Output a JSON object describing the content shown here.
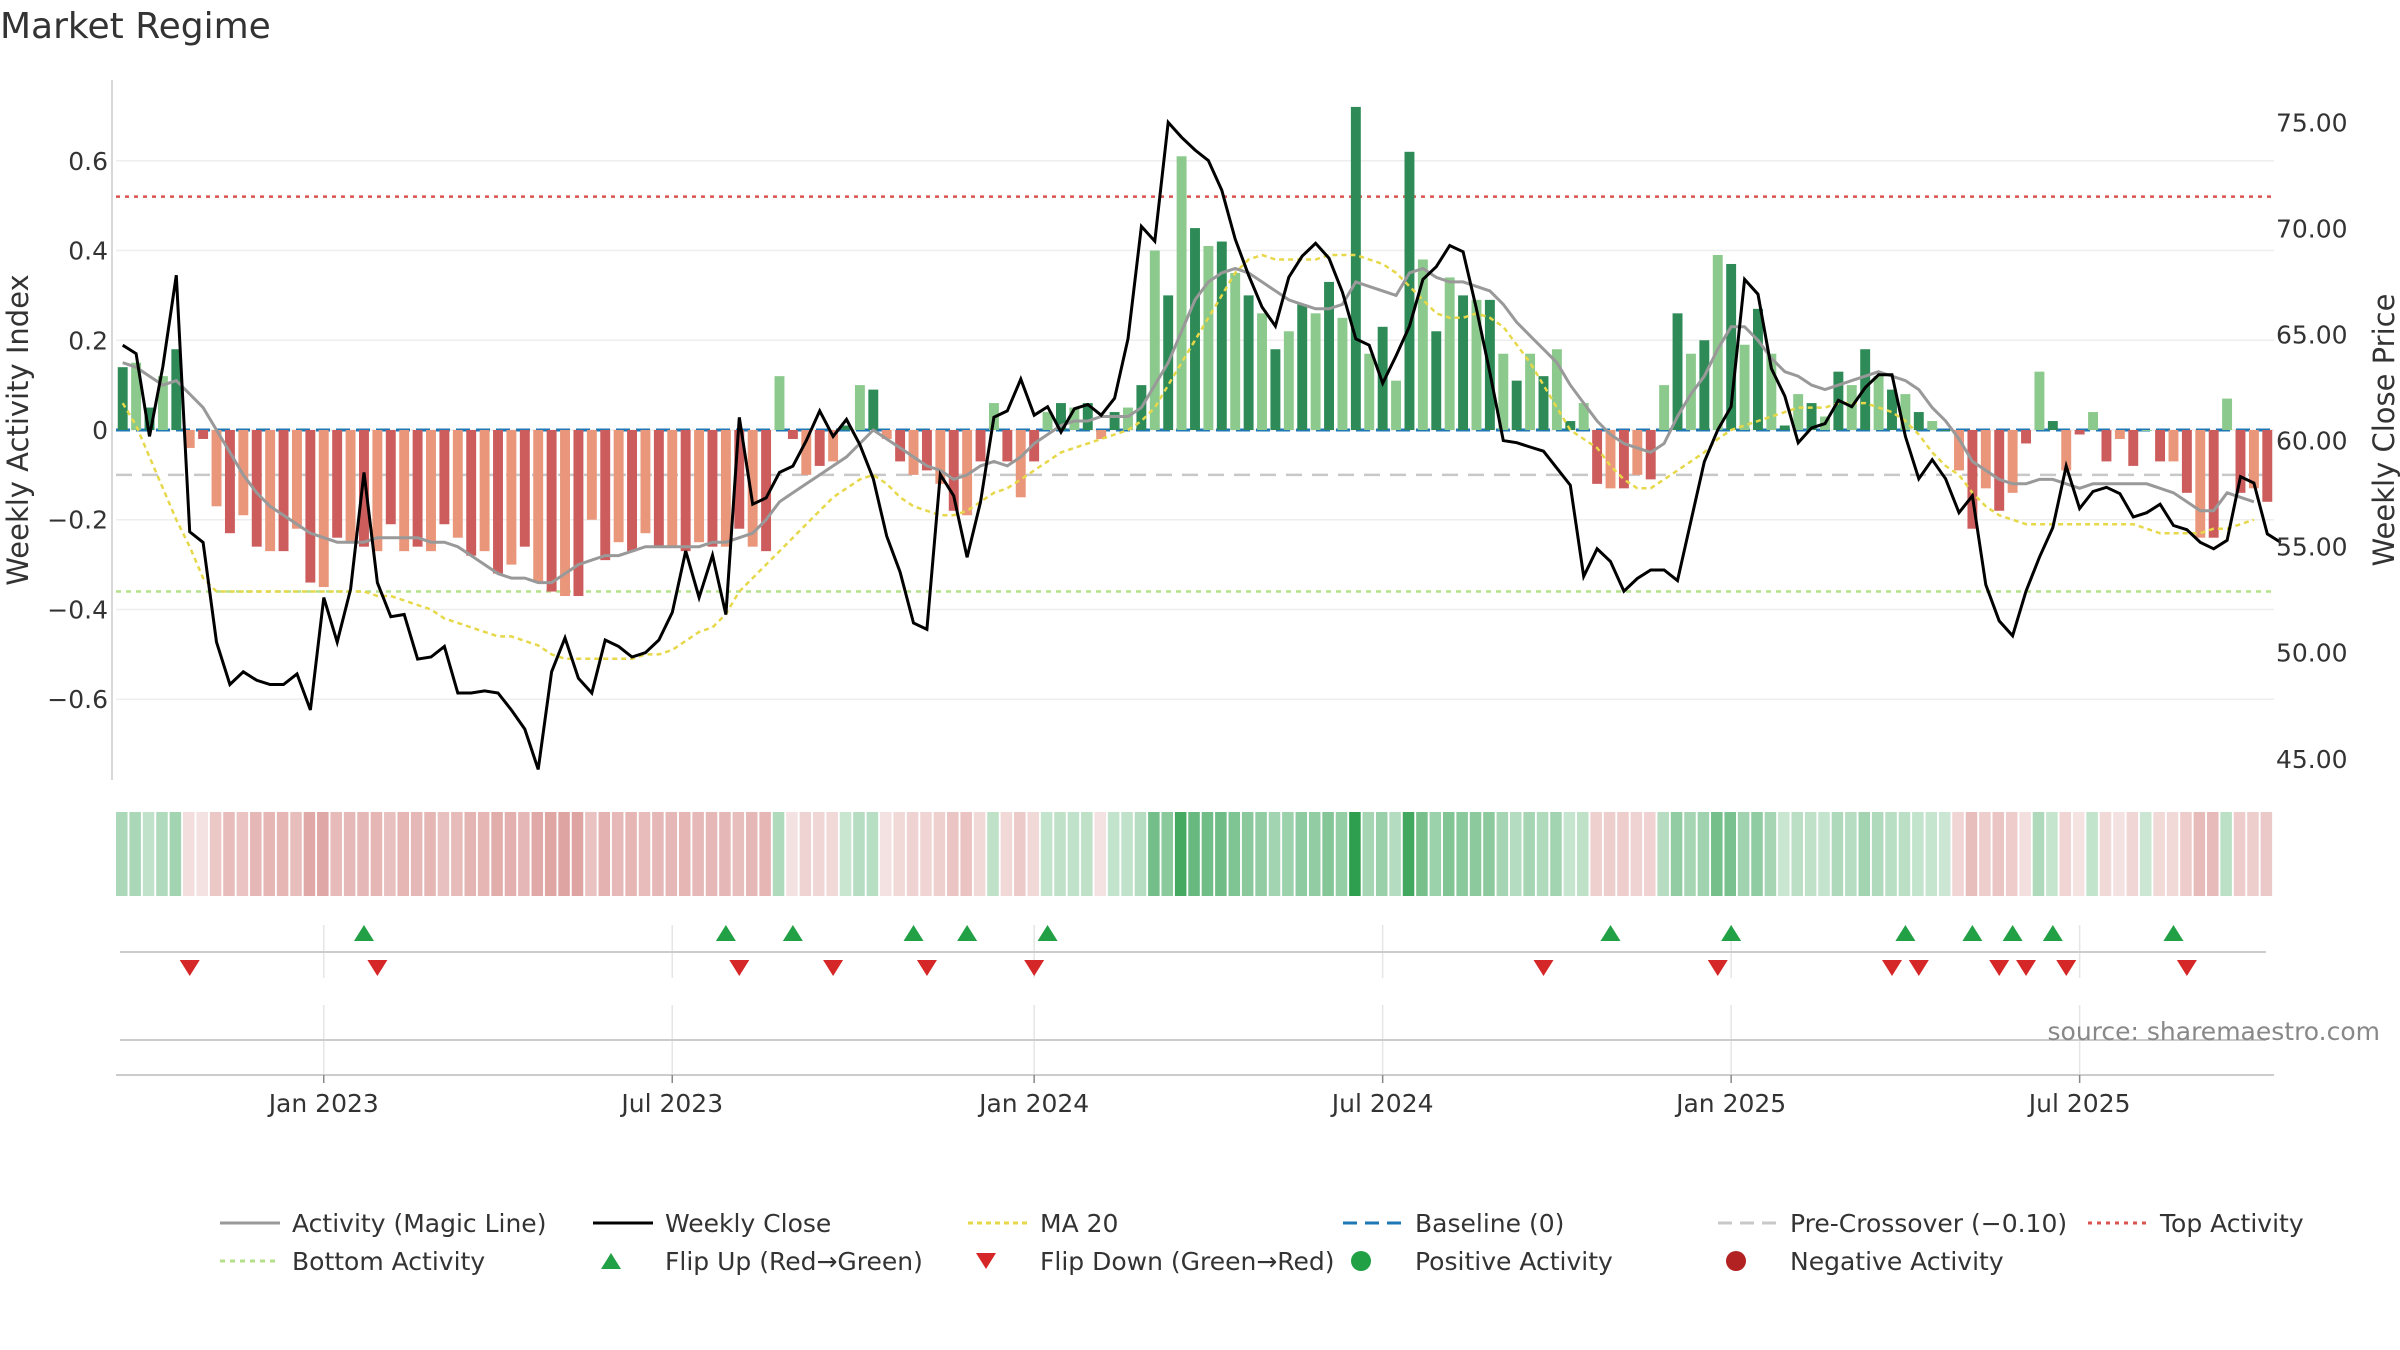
{
  "title": "Market Regime",
  "source": "source: sharemaestro.com",
  "colors": {
    "pos_dark": "#2e8b57",
    "pos_light": "#8cc98c",
    "neg_dark": "#cd5c5c",
    "neg_light": "#e9967a",
    "magic": "#999999",
    "close": "#000000",
    "ma20": "#e6d84a",
    "baseline": "#1f77b4",
    "pre": "#c8c8c8",
    "top": "#d9534f",
    "bottom": "#b5e08a",
    "flip_up": "#22a045",
    "flip_down": "#d62728",
    "pos_dot": "#22a045",
    "neg_dot": "#b22222"
  },
  "chart_data": {
    "type": "bar",
    "title": "Market Regime",
    "ylabel_left": "Weekly Activity Index",
    "ylabel_right": "Weekly Close Price",
    "ylim_left": [
      -0.78,
      0.78
    ],
    "ylim_right": [
      44,
      77
    ],
    "left_ticks": [
      {
        "v": 0.6,
        "label": "0.6"
      },
      {
        "v": 0.4,
        "label": "0.4"
      },
      {
        "v": 0.2,
        "label": "0.2"
      },
      {
        "v": 0,
        "label": "0"
      },
      {
        "v": -0.2,
        "label": "−0.2"
      },
      {
        "v": -0.4,
        "label": "−0.4"
      },
      {
        "v": -0.6,
        "label": "−0.6"
      }
    ],
    "right_ticks": [
      {
        "v": 75,
        "label": "75.00"
      },
      {
        "v": 70,
        "label": "70.00"
      },
      {
        "v": 65,
        "label": "65.00"
      },
      {
        "v": 60,
        "label": "60.00"
      },
      {
        "v": 55,
        "label": "55.00"
      },
      {
        "v": 50,
        "label": "50.00"
      },
      {
        "v": 45,
        "label": "45.00"
      }
    ],
    "x_ticks": [
      {
        "week": 15,
        "label": "Jan 2023"
      },
      {
        "week": 41,
        "label": "Jul 2023"
      },
      {
        "week": 68,
        "label": "Jan 2024"
      },
      {
        "week": 94,
        "label": "Jul 2024"
      },
      {
        "week": 120,
        "label": "Jan 2025"
      },
      {
        "week": 146,
        "label": "Jul 2025"
      }
    ],
    "top_activity": 0.52,
    "bottom_activity": -0.36,
    "pre_crossover": -0.1,
    "baseline": 0,
    "activity": [
      0.14,
      0.15,
      0.05,
      0.12,
      0.18,
      -0.04,
      -0.02,
      -0.17,
      -0.23,
      -0.19,
      -0.26,
      -0.27,
      -0.27,
      -0.22,
      -0.34,
      -0.35,
      -0.24,
      -0.25,
      -0.26,
      -0.27,
      -0.21,
      -0.27,
      -0.26,
      -0.27,
      -0.21,
      -0.24,
      -0.28,
      -0.27,
      -0.32,
      -0.3,
      -0.26,
      -0.34,
      -0.36,
      -0.37,
      -0.37,
      -0.2,
      -0.29,
      -0.25,
      -0.27,
      -0.23,
      -0.26,
      -0.26,
      -0.27,
      -0.25,
      -0.26,
      -0.26,
      -0.22,
      -0.26,
      -0.27,
      0.12,
      -0.02,
      -0.1,
      -0.08,
      -0.07,
      0.01,
      0.1,
      0.09,
      -0.02,
      -0.07,
      -0.1,
      -0.09,
      -0.12,
      -0.18,
      -0.19,
      -0.07,
      0.06,
      -0.07,
      -0.15,
      -0.07,
      0.04,
      0.06,
      0.05,
      0.06,
      -0.02,
      0.04,
      0.05,
      0.1,
      0.4,
      0.3,
      0.61,
      0.45,
      0.41,
      0.42,
      0.35,
      0.3,
      0.26,
      0.18,
      0.22,
      0.28,
      0.26,
      0.33,
      0.25,
      0.72,
      0.17,
      0.23,
      0.11,
      0.62,
      0.38,
      0.22,
      0.34,
      0.3,
      0.29,
      0.29,
      0.17,
      0.11,
      0.17,
      0.12,
      0.18,
      0.02,
      0.06,
      -0.12,
      -0.13,
      -0.13,
      -0.1,
      -0.11,
      0.1,
      0.26,
      0.17,
      0.2,
      0.39,
      0.37,
      0.19,
      0.27,
      0.17,
      0.01,
      0.08,
      0.06,
      0.03,
      0.13,
      0.1,
      0.18,
      0.12,
      0.09,
      0.08,
      0.04,
      0.02,
      0.0,
      -0.09,
      -0.22,
      -0.13,
      -0.18,
      -0.14,
      -0.03,
      0.13,
      0.02,
      -0.09,
      -0.01,
      0.04,
      -0.07,
      -0.02,
      -0.08,
      0.0,
      -0.07,
      -0.07,
      -0.14,
      -0.24,
      -0.24,
      0.07,
      -0.14,
      -0.13,
      -0.16
    ],
    "magic_line": [
      0.15,
      0.14,
      0.12,
      0.1,
      0.11,
      0.08,
      0.05,
      0.0,
      -0.05,
      -0.1,
      -0.14,
      -0.17,
      -0.19,
      -0.21,
      -0.23,
      -0.24,
      -0.25,
      -0.25,
      -0.25,
      -0.24,
      -0.24,
      -0.24,
      -0.24,
      -0.25,
      -0.25,
      -0.26,
      -0.28,
      -0.3,
      -0.32,
      -0.33,
      -0.33,
      -0.34,
      -0.34,
      -0.32,
      -0.3,
      -0.29,
      -0.28,
      -0.28,
      -0.27,
      -0.26,
      -0.26,
      -0.26,
      -0.26,
      -0.26,
      -0.25,
      -0.25,
      -0.24,
      -0.23,
      -0.2,
      -0.16,
      -0.14,
      -0.12,
      -0.1,
      -0.08,
      -0.06,
      -0.03,
      0.0,
      -0.02,
      -0.04,
      -0.06,
      -0.08,
      -0.09,
      -0.11,
      -0.1,
      -0.08,
      -0.07,
      -0.08,
      -0.06,
      -0.03,
      -0.01,
      0.01,
      0.02,
      0.02,
      0.03,
      0.03,
      0.03,
      0.05,
      0.1,
      0.15,
      0.22,
      0.29,
      0.33,
      0.35,
      0.36,
      0.35,
      0.33,
      0.31,
      0.29,
      0.28,
      0.27,
      0.27,
      0.28,
      0.33,
      0.32,
      0.31,
      0.3,
      0.35,
      0.36,
      0.34,
      0.33,
      0.33,
      0.32,
      0.31,
      0.28,
      0.24,
      0.21,
      0.18,
      0.15,
      0.1,
      0.06,
      0.02,
      -0.01,
      -0.03,
      -0.04,
      -0.05,
      -0.03,
      0.03,
      0.08,
      0.12,
      0.18,
      0.23,
      0.23,
      0.2,
      0.16,
      0.13,
      0.12,
      0.1,
      0.09,
      0.1,
      0.11,
      0.12,
      0.13,
      0.12,
      0.11,
      0.09,
      0.05,
      0.02,
      -0.02,
      -0.07,
      -0.09,
      -0.11,
      -0.12,
      -0.12,
      -0.11,
      -0.11,
      -0.12,
      -0.13,
      -0.12,
      -0.12,
      -0.12,
      -0.12,
      -0.12,
      -0.13,
      -0.14,
      -0.16,
      -0.18,
      -0.18,
      -0.14,
      -0.15,
      -0.16
    ],
    "weekly_close": [
      64.5,
      64.1,
      60.2,
      63.5,
      67.8,
      55.7,
      55.2,
      50.5,
      48.5,
      49.1,
      48.7,
      48.5,
      48.5,
      49.0,
      47.3,
      52.6,
      50.5,
      53.0,
      58.5,
      53.3,
      51.7,
      51.8,
      49.7,
      49.8,
      50.3,
      48.1,
      48.1,
      48.2,
      48.1,
      47.3,
      46.4,
      44.5,
      49.1,
      50.7,
      48.8,
      48.1,
      50.6,
      50.3,
      49.8,
      50.0,
      50.6,
      51.9,
      54.8,
      52.6,
      54.6,
      51.8,
      61.1,
      57.0,
      57.3,
      58.5,
      58.8,
      60.0,
      61.4,
      60.2,
      61.0,
      59.8,
      58.2,
      55.5,
      53.8,
      51.4,
      51.1,
      58.4,
      57.4,
      54.5,
      57.1,
      61.1,
      61.4,
      62.9,
      61.2,
      61.6,
      60.4,
      61.5,
      61.7,
      61.2,
      62.0,
      64.8,
      70.1,
      69.4,
      75.0,
      74.3,
      73.7,
      73.2,
      71.8,
      69.5,
      67.8,
      66.3,
      65.4,
      67.7,
      68.7,
      69.3,
      68.6,
      67.0,
      64.8,
      64.5,
      62.7,
      64.0,
      65.4,
      67.6,
      68.2,
      69.2,
      68.9,
      66.2,
      63.2,
      60.0,
      59.9,
      59.7,
      59.5,
      58.7,
      57.9,
      53.6,
      54.9,
      54.3,
      52.9,
      53.5,
      53.9,
      53.9,
      53.4,
      56.2,
      59.0,
      60.5,
      61.6,
      67.6,
      66.9,
      63.4,
      62.1,
      59.9,
      60.6,
      60.8,
      61.9,
      61.6,
      62.5,
      63.1,
      63.1,
      60.2,
      58.2,
      59.1,
      58.2,
      56.6,
      57.4,
      53.2,
      51.5,
      50.8,
      52.9,
      54.5,
      55.9,
      58.8,
      56.8,
      57.6,
      57.8,
      57.5,
      56.4,
      56.6,
      57.0,
      56.0,
      55.8,
      55.2,
      54.9,
      55.3,
      58.3,
      58.0,
      55.6,
      55.2
    ],
    "ma20": [
      0.06,
      0.01,
      -0.06,
      -0.13,
      -0.2,
      -0.26,
      -0.33,
      -0.36,
      -0.36,
      -0.36,
      -0.36,
      -0.36,
      -0.36,
      -0.36,
      -0.36,
      -0.36,
      -0.36,
      -0.36,
      -0.36,
      -0.37,
      -0.37,
      -0.38,
      -0.39,
      -0.4,
      -0.42,
      -0.43,
      -0.44,
      -0.45,
      -0.46,
      -0.46,
      -0.47,
      -0.48,
      -0.5,
      -0.51,
      -0.51,
      -0.51,
      -0.51,
      -0.51,
      -0.51,
      -0.5,
      -0.5,
      -0.49,
      -0.47,
      -0.45,
      -0.44,
      -0.41,
      -0.36,
      -0.33,
      -0.3,
      -0.27,
      -0.24,
      -0.21,
      -0.18,
      -0.15,
      -0.13,
      -0.11,
      -0.1,
      -0.12,
      -0.15,
      -0.17,
      -0.18,
      -0.19,
      -0.19,
      -0.18,
      -0.16,
      -0.14,
      -0.13,
      -0.11,
      -0.09,
      -0.07,
      -0.05,
      -0.04,
      -0.03,
      -0.02,
      -0.01,
      0.0,
      0.02,
      0.05,
      0.1,
      0.15,
      0.2,
      0.25,
      0.3,
      0.35,
      0.38,
      0.39,
      0.38,
      0.38,
      0.38,
      0.38,
      0.39,
      0.39,
      0.39,
      0.38,
      0.37,
      0.35,
      0.32,
      0.29,
      0.26,
      0.25,
      0.25,
      0.26,
      0.25,
      0.23,
      0.19,
      0.15,
      0.1,
      0.05,
      0.0,
      -0.02,
      -0.04,
      -0.08,
      -0.11,
      -0.13,
      -0.13,
      -0.11,
      -0.09,
      -0.07,
      -0.05,
      -0.02,
      0.0,
      0.01,
      0.02,
      0.03,
      0.04,
      0.05,
      0.05,
      0.05,
      0.06,
      0.06,
      0.06,
      0.05,
      0.04,
      0.02,
      -0.01,
      -0.05,
      -0.08,
      -0.1,
      -0.14,
      -0.17,
      -0.19,
      -0.2,
      -0.21,
      -0.21,
      -0.21,
      -0.21,
      -0.21,
      -0.21,
      -0.21,
      -0.21,
      -0.21,
      -0.22,
      -0.23,
      -0.23,
      -0.23,
      -0.23,
      -0.22,
      -0.22,
      -0.21,
      -0.2
    ],
    "flip_up_weeks": [
      18,
      45,
      50,
      59,
      63,
      69,
      111,
      120,
      133,
      138,
      141,
      144,
      153
    ],
    "flip_down_weeks": [
      5,
      19,
      46,
      53,
      60,
      68,
      106,
      119,
      132,
      134,
      140,
      142,
      145,
      154
    ],
    "legend": [
      {
        "key": "magic",
        "label": "Activity (Magic Line)"
      },
      {
        "key": "close",
        "label": "Weekly Close"
      },
      {
        "key": "ma20",
        "label": "MA 20"
      },
      {
        "key": "baseline",
        "label": "Baseline (0)"
      },
      {
        "key": "pre",
        "label": "Pre-Crossover (−0.10)"
      },
      {
        "key": "top",
        "label": "Top Activity"
      },
      {
        "key": "bottom",
        "label": "Bottom Activity"
      },
      {
        "key": "flip_up",
        "label": "Flip Up (Red→Green)"
      },
      {
        "key": "flip_down",
        "label": "Flip Down (Green→Red)"
      },
      {
        "key": "pos_dot",
        "label": "Positive Activity"
      },
      {
        "key": "neg_dot",
        "label": "Negative Activity"
      }
    ]
  }
}
